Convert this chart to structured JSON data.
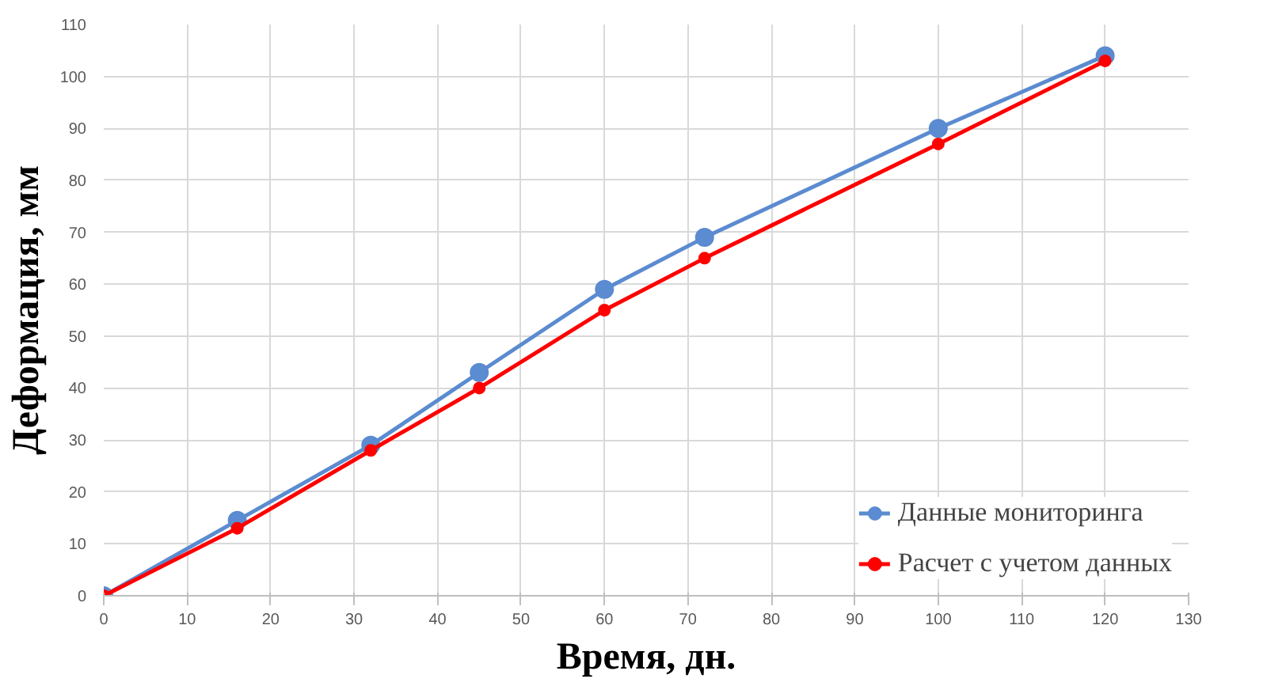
{
  "chart_data": {
    "type": "line",
    "xlabel": "Время, дн.",
    "ylabel": "Деформация, мм",
    "xlim": [
      0,
      130
    ],
    "xticks": [
      0,
      10,
      20,
      30,
      40,
      50,
      60,
      70,
      80,
      90,
      100,
      110,
      120,
      130
    ],
    "ylim": [
      0,
      110
    ],
    "yticks": [
      0,
      10,
      20,
      30,
      40,
      50,
      60,
      70,
      80,
      90,
      100,
      110
    ],
    "x": [
      0,
      16,
      32,
      45,
      60,
      72,
      100,
      120
    ],
    "series": [
      {
        "name": "Данные мониторинга",
        "color": "#5b8bd0",
        "values": [
          0,
          14.5,
          29,
          43,
          59,
          69,
          90,
          104
        ]
      },
      {
        "name": "Расчет с учетом данных",
        "color": "#ff0000",
        "values": [
          0,
          13,
          28,
          40,
          55,
          65,
          87,
          103
        ]
      }
    ],
    "grid": true,
    "legend": "bottom right",
    "marker": "circle",
    "line_style": "solid"
  }
}
